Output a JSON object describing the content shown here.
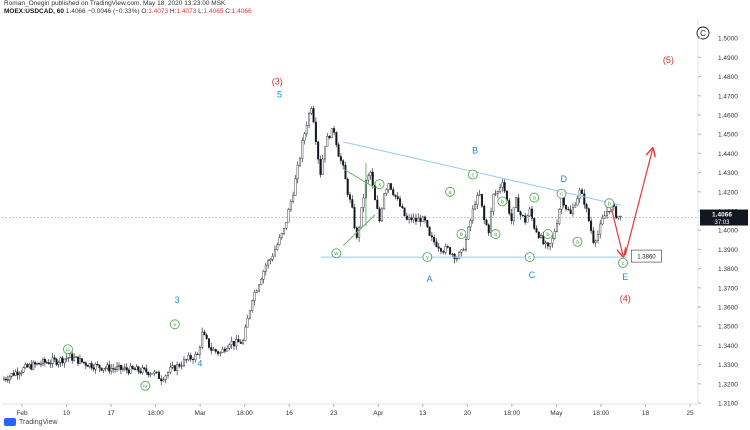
{
  "header": {
    "line1": "Roman_Onegin published on TradingView.com, May 18, 2020 13:23:00 MSK",
    "symbol": "MOEX:USDCAD, 60",
    "price": "1.4066",
    "change": "−0.0046 (−0.33%)",
    "o_label": "O:",
    "o_value": "1.4073",
    "h_label": "H:",
    "h_value": "1.4073",
    "l_label": "L:",
    "l_value": "1.4065",
    "c_label": "C:",
    "c_value": "1.4066"
  },
  "footer": {
    "brand": "TradingView"
  },
  "colors": {
    "candle": "#131722",
    "wave_blue": "#1e88e5",
    "wave_red": "#d32f2f",
    "circle_green": "#43a047",
    "trendline": "#90caf9",
    "triangle": "#66bb6a",
    "arrow": "#e53935",
    "price_line": "#9e9e9e"
  },
  "chart_data": {
    "type": "candlestick",
    "symbol": "MOEX:USDCAD",
    "timeframe": "60",
    "ylim": [
      1.3095,
      1.5105
    ],
    "y_ticks": [
      1.31,
      1.32,
      1.33,
      1.34,
      1.35,
      1.36,
      1.37,
      1.38,
      1.39,
      1.4,
      1.41,
      1.42,
      1.43,
      1.44,
      1.45,
      1.46,
      1.47,
      1.48,
      1.49,
      1.5
    ],
    "x_ticks": [
      "Feb",
      "10",
      "17",
      "18:00",
      "Mar",
      "18:00",
      "16",
      "23",
      "Apr",
      "13",
      "20",
      "18:00",
      "May",
      "18:00",
      "18",
      "25"
    ],
    "last_price": "1.4066",
    "countdown": "37:03",
    "target_price": "1.3860",
    "price_path": [
      [
        0,
        1.322
      ],
      [
        6,
        1.326
      ],
      [
        12,
        1.329
      ],
      [
        18,
        1.331
      ],
      [
        24,
        1.332
      ],
      [
        30,
        1.334
      ],
      [
        36,
        1.331
      ],
      [
        42,
        1.329
      ],
      [
        48,
        1.328
      ],
      [
        54,
        1.3275
      ],
      [
        60,
        1.327
      ],
      [
        66,
        1.326
      ],
      [
        70,
        1.323
      ],
      [
        74,
        1.327
      ],
      [
        78,
        1.33
      ],
      [
        82,
        1.333
      ],
      [
        86,
        1.335
      ],
      [
        88,
        1.346
      ],
      [
        90,
        1.342
      ],
      [
        92,
        1.338
      ],
      [
        94,
        1.337
      ],
      [
        96,
        1.336
      ],
      [
        98,
        1.339
      ],
      [
        100,
        1.342
      ],
      [
        102,
        1.341
      ],
      [
        106,
        1.342
      ],
      [
        110,
        1.365
      ],
      [
        112,
        1.37
      ],
      [
        114,
        1.376
      ],
      [
        116,
        1.382
      ],
      [
        118,
        1.385
      ],
      [
        120,
        1.39
      ],
      [
        122,
        1.395
      ],
      [
        124,
        1.4
      ],
      [
        126,
        1.41
      ],
      [
        128,
        1.42
      ],
      [
        130,
        1.432
      ],
      [
        132,
        1.445
      ],
      [
        134,
        1.456
      ],
      [
        136,
        1.465
      ],
      [
        137,
        1.458
      ],
      [
        138,
        1.448
      ],
      [
        139,
        1.438
      ],
      [
        140,
        1.43
      ],
      [
        142,
        1.445
      ],
      [
        144,
        1.45
      ],
      [
        146,
        1.452
      ],
      [
        148,
        1.44
      ],
      [
        150,
        1.432
      ],
      [
        152,
        1.42
      ],
      [
        154,
        1.41
      ],
      [
        156,
        1.395
      ],
      [
        158,
        1.41
      ],
      [
        160,
        1.425
      ],
      [
        162,
        1.43
      ],
      [
        164,
        1.415
      ],
      [
        166,
        1.405
      ],
      [
        168,
        1.42
      ],
      [
        170,
        1.425
      ],
      [
        172,
        1.42
      ],
      [
        174,
        1.415
      ],
      [
        176,
        1.41
      ],
      [
        178,
        1.405
      ],
      [
        180,
        1.406
      ],
      [
        182,
        1.405
      ],
      [
        184,
        1.406
      ],
      [
        186,
        1.404
      ],
      [
        188,
        1.396
      ],
      [
        190,
        1.394
      ],
      [
        192,
        1.392
      ],
      [
        194,
        1.39
      ],
      [
        196,
        1.39
      ],
      [
        198,
        1.388
      ],
      [
        200,
        1.386
      ],
      [
        202,
        1.388
      ],
      [
        204,
        1.395
      ],
      [
        206,
        1.405
      ],
      [
        208,
        1.415
      ],
      [
        210,
        1.418
      ],
      [
        212,
        1.405
      ],
      [
        214,
        1.4
      ],
      [
        216,
        1.418
      ],
      [
        218,
        1.42
      ],
      [
        220,
        1.4265
      ],
      [
        222,
        1.415
      ],
      [
        224,
        1.405
      ],
      [
        226,
        1.415
      ],
      [
        228,
        1.408
      ],
      [
        230,
        1.405
      ],
      [
        232,
        1.41
      ],
      [
        234,
        1.402
      ],
      [
        236,
        1.398
      ],
      [
        238,
        1.393
      ],
      [
        240,
        1.39
      ],
      [
        242,
        1.395
      ],
      [
        244,
        1.405
      ],
      [
        246,
        1.418
      ],
      [
        248,
        1.412
      ],
      [
        250,
        1.408
      ],
      [
        252,
        1.415
      ],
      [
        254,
        1.42
      ],
      [
        256,
        1.415
      ],
      [
        258,
        1.405
      ],
      [
        260,
        1.395
      ],
      [
        262,
        1.398
      ],
      [
        264,
        1.405
      ],
      [
        266,
        1.41
      ],
      [
        268,
        1.413
      ],
      [
        270,
        1.408
      ],
      [
        272,
        1.4066
      ]
    ],
    "x_range": [
      0,
      306
    ],
    "lines": [
      {
        "name": "upper-trendline",
        "color": "#90caf9",
        "points": [
          [
            150,
            1.446
          ],
          [
            272,
            1.413
          ]
        ]
      },
      {
        "name": "lower-trendline",
        "color": "#90caf9",
        "points": [
          [
            140,
            1.386
          ],
          [
            275,
            1.386
          ]
        ]
      },
      {
        "name": "triangle-upper",
        "color": "#66bb6a",
        "points": [
          [
            150,
            1.432
          ],
          [
            164,
            1.422
          ]
        ]
      },
      {
        "name": "triangle-lower",
        "color": "#66bb6a",
        "points": [
          [
            150,
            1.392
          ],
          [
            164,
            1.408
          ]
        ]
      },
      {
        "name": "triangle-apex",
        "color": "#66bb6a",
        "points": [
          [
            160,
            1.435
          ],
          [
            160,
            1.402
          ]
        ]
      }
    ],
    "wave_labels": [
      {
        "text": "(3)",
        "x": 121,
        "y": 1.476,
        "color": "#d32f2f"
      },
      {
        "text": "5",
        "x": 122,
        "y": 1.469,
        "color": "#1e88e5"
      },
      {
        "text": "(5)",
        "x": 293,
        "y": 1.487,
        "color": "#d32f2f"
      },
      {
        "text": "3",
        "x": 77,
        "y": 1.362,
        "color": "#1e88e5"
      },
      {
        "text": "4",
        "x": 87,
        "y": 1.329,
        "color": "#1e88e5"
      },
      {
        "text": "B",
        "x": 208,
        "y": 1.44,
        "color": "#1e88e5"
      },
      {
        "text": "D",
        "x": 247,
        "y": 1.425,
        "color": "#1e88e5"
      },
      {
        "text": "A",
        "x": 188,
        "y": 1.373,
        "color": "#1e88e5"
      },
      {
        "text": "C",
        "x": 233,
        "y": 1.375,
        "color": "#1e88e5"
      },
      {
        "text": "E",
        "x": 274,
        "y": 1.374,
        "color": "#1e88e5"
      },
      {
        "text": "(4)",
        "x": 274,
        "y": 1.363,
        "color": "#d32f2f"
      }
    ],
    "circle_labels": [
      {
        "text": "iii",
        "x": 29,
        "y": 1.338,
        "color": "#43a047"
      },
      {
        "text": "iv",
        "x": 63,
        "y": 1.319,
        "color": "#43a047"
      },
      {
        "text": "v",
        "x": 76,
        "y": 1.351,
        "color": "#43a047"
      },
      {
        "text": "x",
        "x": 166,
        "y": 1.424,
        "color": "#43a047"
      },
      {
        "text": "w",
        "x": 147,
        "y": 1.388,
        "color": "#43a047"
      },
      {
        "text": "y",
        "x": 187,
        "y": 1.386,
        "color": "#43a047"
      },
      {
        "text": "a",
        "x": 197,
        "y": 1.42,
        "color": "#43a047"
      },
      {
        "text": "b",
        "x": 202,
        "y": 1.398,
        "color": "#43a047"
      },
      {
        "text": "c",
        "x": 207,
        "y": 1.429,
        "color": "#43a047"
      },
      {
        "text": "a",
        "x": 217,
        "y": 1.398,
        "color": "#43a047"
      },
      {
        "text": "b",
        "x": 220,
        "y": 1.415,
        "color": "#43a047"
      },
      {
        "text": "c",
        "x": 232,
        "y": 1.386,
        "color": "#43a047"
      },
      {
        "text": "a",
        "x": 234,
        "y": 1.417,
        "color": "#43a047"
      },
      {
        "text": "b",
        "x": 240,
        "y": 1.398,
        "color": "#43a047"
      },
      {
        "text": "c",
        "x": 246,
        "y": 1.419,
        "color": "#43a047"
      },
      {
        "text": "a",
        "x": 253,
        "y": 1.394,
        "color": "#43a047"
      },
      {
        "text": "b",
        "x": 267,
        "y": 1.414,
        "color": "#43a047"
      },
      {
        "text": "c",
        "x": 273,
        "y": 1.383,
        "color": "#43a047"
      }
    ],
    "arrows": [
      {
        "name": "down-arrow",
        "color": "#e53935",
        "from": [
          268,
          1.411
        ],
        "to": [
          273,
          1.387
        ]
      },
      {
        "name": "up-arrow",
        "color": "#e53935",
        "from": [
          274,
          1.387
        ],
        "to": [
          286,
          1.442
        ]
      }
    ],
    "top_corner_label": "C"
  }
}
